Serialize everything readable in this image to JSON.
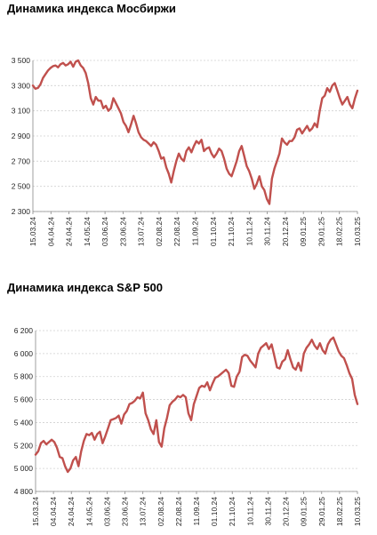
{
  "chart_data": [
    {
      "type": "line",
      "title": "Динамика индекса Мосбиржи",
      "xlabel": "",
      "ylabel": "",
      "ylim": [
        2300,
        3500
      ],
      "yticks": [
        "3 500",
        "3 300",
        "3 100",
        "2 900",
        "2 700",
        "2 500",
        "2 300"
      ],
      "ytick_values": [
        3500,
        3300,
        3100,
        2900,
        2700,
        2500,
        2300
      ],
      "x_tick_labels": [
        "15.03.24",
        "04.04.24",
        "24.04.24",
        "14.05.24",
        "03.06.24",
        "23.06.24",
        "13.07.24",
        "02.08.24",
        "22.08.24",
        "11.09.24",
        "01.10.24",
        "21.10.24",
        "10.11.24",
        "30.11.24",
        "20.12.24",
        "09.01.25",
        "29.01.25",
        "18.02.25",
        "10.03.25"
      ],
      "grid": true,
      "line_color": "#c0504d",
      "series": [
        {
          "values": [
            3300,
            3275,
            3282,
            3310,
            3360,
            3390,
            3420,
            3440,
            3455,
            3460,
            3445,
            3470,
            3480,
            3460,
            3470,
            3490,
            3450,
            3490,
            3500,
            3460,
            3440,
            3400,
            3320,
            3200,
            3150,
            3210,
            3180,
            3180,
            3120,
            3140,
            3100,
            3120,
            3200,
            3160,
            3120,
            3080,
            3010,
            2980,
            2930,
            2990,
            3060,
            3000,
            2930,
            2890,
            2870,
            2860,
            2840,
            2820,
            2850,
            2830,
            2780,
            2720,
            2730,
            2650,
            2600,
            2530,
            2620,
            2700,
            2760,
            2720,
            2700,
            2780,
            2810,
            2770,
            2820,
            2860,
            2840,
            2870,
            2780,
            2800,
            2810,
            2760,
            2730,
            2760,
            2800,
            2780,
            2720,
            2640,
            2600,
            2580,
            2640,
            2700,
            2780,
            2820,
            2740,
            2660,
            2620,
            2560,
            2480,
            2520,
            2580,
            2500,
            2470,
            2400,
            2360,
            2560,
            2640,
            2700,
            2760,
            2880,
            2850,
            2830,
            2860,
            2860,
            2890,
            2950,
            2960,
            2920,
            2950,
            2980,
            2940,
            2960,
            3000,
            2970,
            3100,
            3200,
            3220,
            3280,
            3250,
            3300,
            3320,
            3260,
            3200,
            3150,
            3180,
            3210,
            3150,
            3120,
            3200,
            3260
          ]
        }
      ]
    },
    {
      "type": "line",
      "title": "Динамика индекса S&P 500",
      "xlabel": "",
      "ylabel": "",
      "ylim": [
        4800,
        6200
      ],
      "yticks": [
        "6 200",
        "6 000",
        "5 800",
        "5 600",
        "5 400",
        "5 200",
        "5 000",
        "4 800"
      ],
      "ytick_values": [
        6200,
        6000,
        5800,
        5600,
        5400,
        5200,
        5000,
        4800
      ],
      "x_tick_labels": [
        "15.03.24",
        "04.04.24",
        "24.04.24",
        "14.05.24",
        "03.06.24",
        "23.06.24",
        "13.07.24",
        "02.08.24",
        "22.08.24",
        "11.09.24",
        "01.10.24",
        "21.10.24",
        "10.11.24",
        "30.11.24",
        "20.12.24",
        "09.01.25",
        "29.01.25",
        "18.02.25",
        "10.03.25"
      ],
      "grid": true,
      "line_color": "#c0504d",
      "series": [
        {
          "values": [
            5120,
            5150,
            5220,
            5240,
            5210,
            5230,
            5250,
            5230,
            5180,
            5100,
            5090,
            5020,
            4970,
            5000,
            5070,
            5100,
            5020,
            5150,
            5240,
            5300,
            5290,
            5310,
            5250,
            5300,
            5320,
            5220,
            5280,
            5350,
            5420,
            5430,
            5440,
            5460,
            5390,
            5470,
            5500,
            5560,
            5570,
            5590,
            5620,
            5610,
            5660,
            5480,
            5420,
            5340,
            5300,
            5420,
            5230,
            5190,
            5350,
            5440,
            5550,
            5580,
            5600,
            5630,
            5620,
            5640,
            5620,
            5480,
            5420,
            5560,
            5630,
            5700,
            5720,
            5710,
            5750,
            5680,
            5740,
            5790,
            5800,
            5820,
            5840,
            5860,
            5830,
            5720,
            5710,
            5800,
            5840,
            5970,
            5990,
            5980,
            5940,
            5910,
            5880,
            6000,
            6050,
            6070,
            6090,
            6040,
            6080,
            5980,
            5880,
            5870,
            5930,
            5950,
            6030,
            5950,
            5880,
            5860,
            5920,
            5850,
            6000,
            6050,
            6080,
            6120,
            6070,
            6040,
            6090,
            6030,
            6000,
            6080,
            6120,
            6140,
            6080,
            6020,
            5980,
            5960,
            5900,
            5830,
            5780,
            5640,
            5560
          ]
        }
      ]
    }
  ]
}
